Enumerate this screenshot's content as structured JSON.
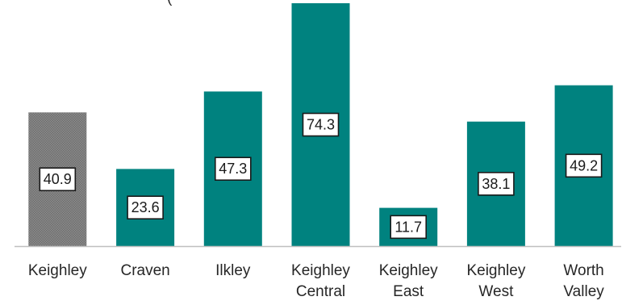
{
  "chart_data": {
    "type": "bar",
    "title": "(                                          ",
    "categories": [
      [
        "Keighley"
      ],
      [
        "Craven"
      ],
      [
        "Ilkley"
      ],
      [
        "Keighley",
        "Central"
      ],
      [
        "Keighley",
        "East"
      ],
      [
        "Keighley",
        "West"
      ],
      [
        "Worth",
        "Valley"
      ]
    ],
    "values": [
      40.9,
      23.6,
      47.3,
      74.3,
      11.7,
      38.1,
      49.2
    ],
    "value_labels": [
      "40.9",
      "23.6",
      "47.3",
      "74.3",
      "11.7",
      "38.1",
      "49.2"
    ],
    "bar_colors": [
      "#7f7f7f",
      "#00827f",
      "#00827f",
      "#00827f",
      "#00827f",
      "#00827f",
      "#00827f"
    ],
    "highlight_pattern": "dotted-gray",
    "ylim": [
      0,
      75
    ],
    "grid": false,
    "legend": "none"
  }
}
